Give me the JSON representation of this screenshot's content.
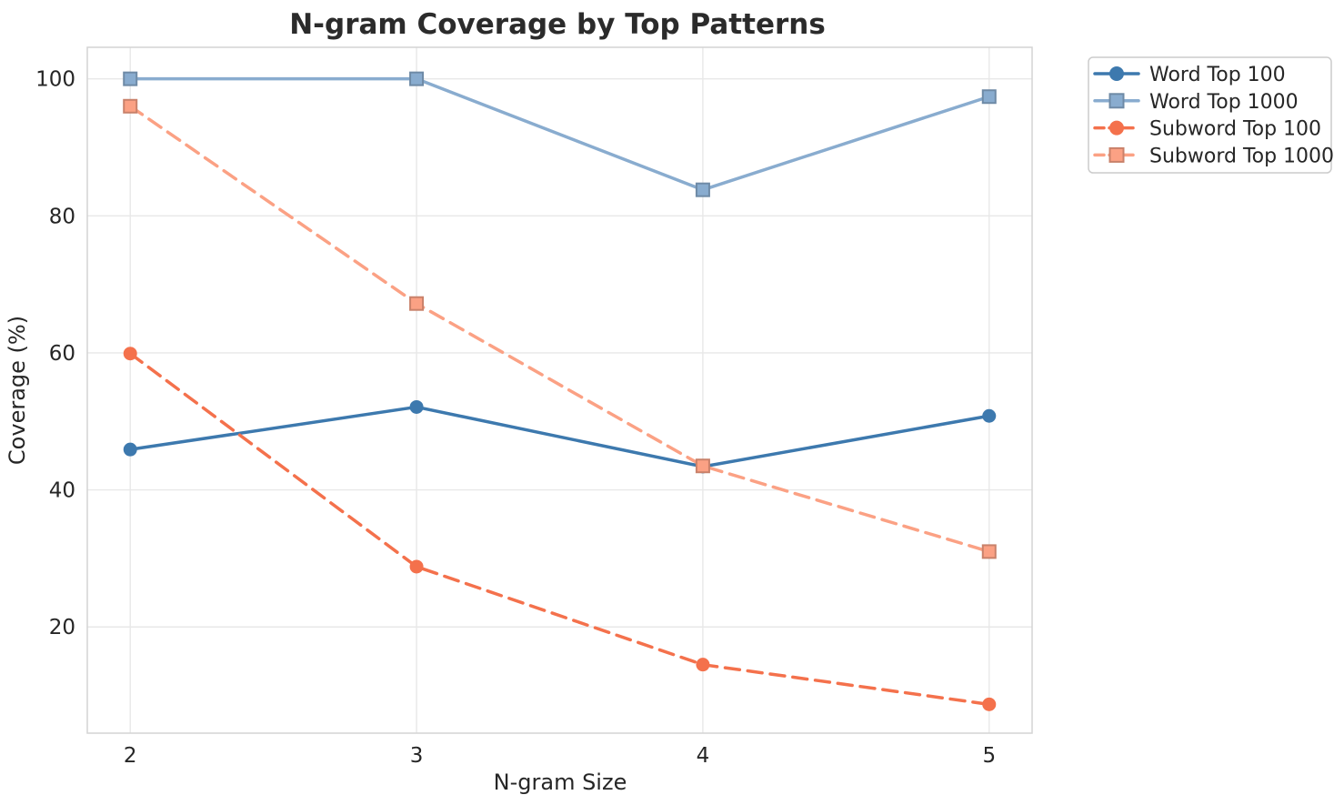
{
  "chart_data": {
    "type": "line",
    "title": "N-gram Coverage by Top Patterns",
    "xlabel": "N-gram Size",
    "ylabel": "Coverage (%)",
    "x": [
      2,
      3,
      4,
      5
    ],
    "xticks": [
      "2",
      "3",
      "4",
      "5"
    ],
    "yticks": [
      "20",
      "40",
      "60",
      "80",
      "100"
    ],
    "ytick_values": [
      20,
      40,
      60,
      80,
      100
    ],
    "xlim": [
      1.85,
      5.15
    ],
    "ylim": [
      4.5,
      104.6
    ],
    "grid": true,
    "legend_position": "outside-top-right",
    "series": [
      {
        "name": "Word Top 100",
        "values": [
          45.9,
          52.1,
          43.4,
          50.8
        ],
        "color": "#3D79AE",
        "line_style": "solid",
        "marker": "circle"
      },
      {
        "name": "Word Top 1000",
        "values": [
          100.0,
          100.0,
          83.8,
          97.4
        ],
        "color": "#89ACCF",
        "line_style": "solid",
        "marker": "square"
      },
      {
        "name": "Subword Top 100",
        "values": [
          59.9,
          28.8,
          14.5,
          8.7
        ],
        "color": "#F4714C",
        "line_style": "dashed",
        "marker": "circle"
      },
      {
        "name": "Subword Top 1000",
        "values": [
          96.0,
          67.2,
          43.5,
          31.0
        ],
        "color": "#FBA184",
        "line_style": "dashed",
        "marker": "square"
      }
    ],
    "style": {
      "plot_background": "#FFFFFF",
      "grid_color": "#E8E8E8",
      "spine_color": "#D4D4D4",
      "text_color": "#262626",
      "title_color": "#2B2B2B",
      "legend_border_color": "#CCCCCC",
      "legend_background": "#FFFFFF"
    }
  }
}
